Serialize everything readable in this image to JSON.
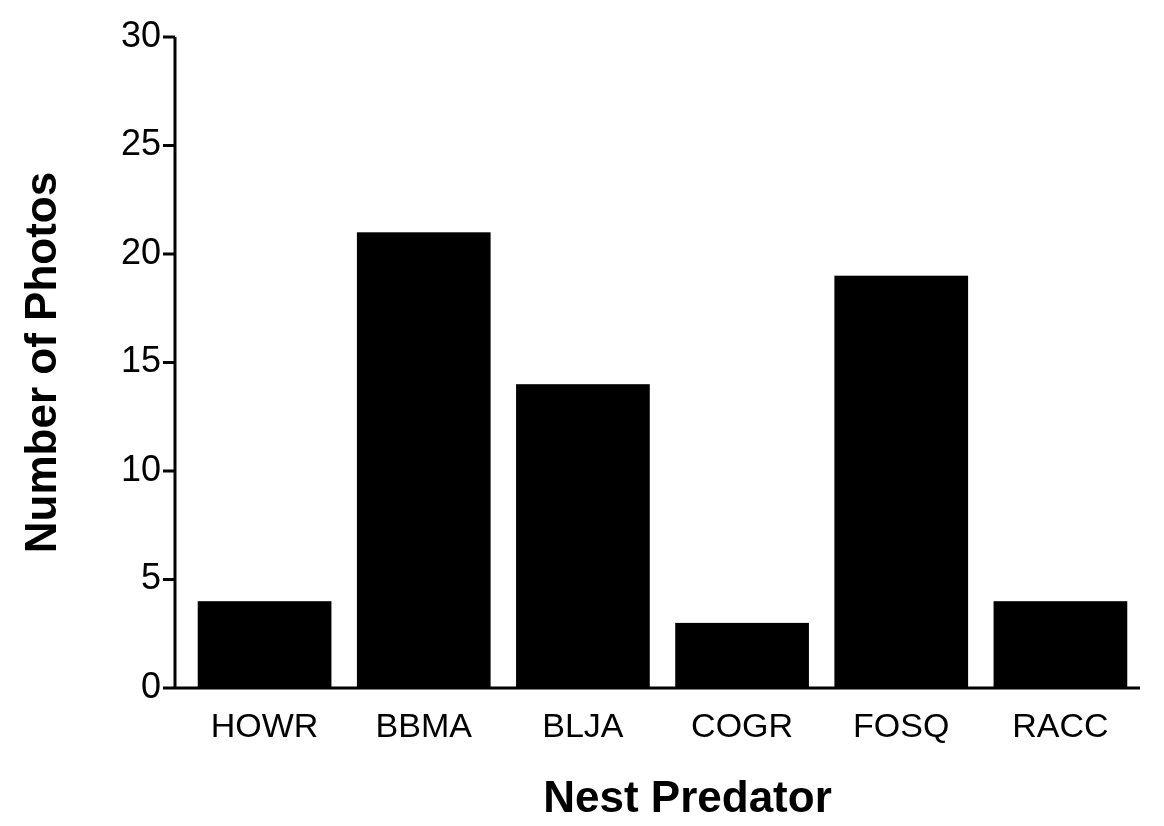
{
  "chart_data": {
    "type": "bar",
    "xlabel": "Nest Predator",
    "ylabel": "Number of Photos",
    "categories": [
      "HOWR",
      "BBMA",
      "BLJA",
      "COGR",
      "FOSQ",
      "RACC"
    ],
    "values": [
      4,
      21,
      14,
      3,
      19,
      4
    ],
    "color": "#000000",
    "ylim": [
      0,
      30
    ],
    "yticks": [
      0,
      5,
      10,
      15,
      20,
      25,
      30
    ]
  }
}
